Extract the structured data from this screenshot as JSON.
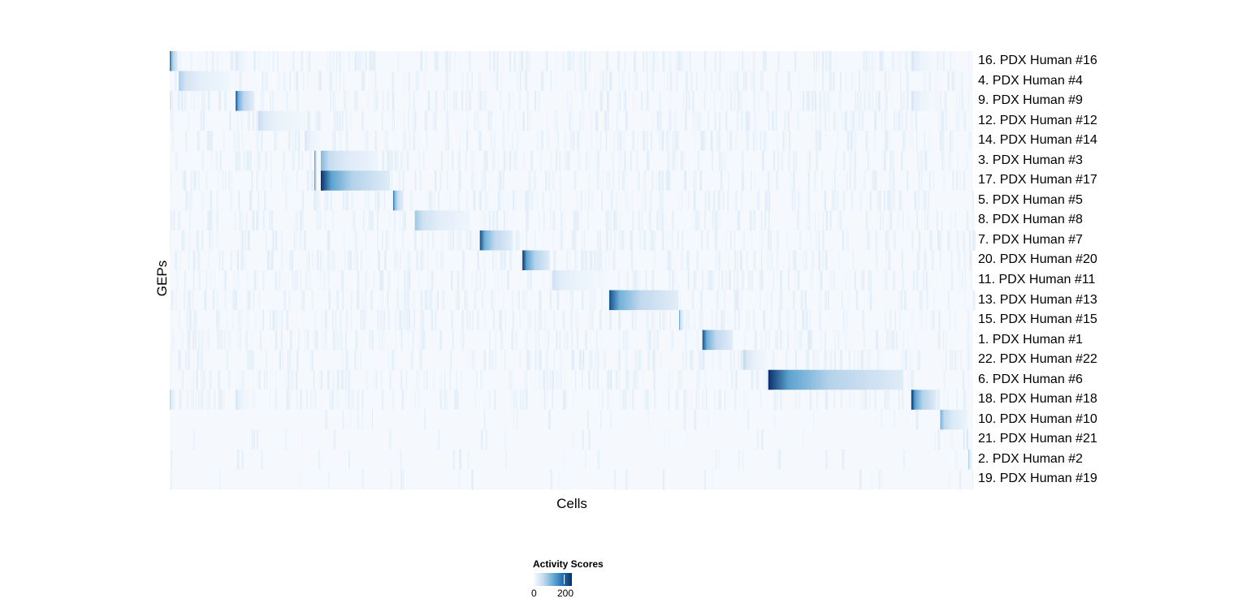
{
  "chart_data": {
    "type": "heatmap",
    "xlabel": "Cells",
    "ylabel": "GEPs",
    "x_units": "cell order (% of cells, approximate)",
    "rows": [
      {
        "label": "16. PDX Human #16",
        "blocks": [
          {
            "range": [
              0,
              1
            ],
            "peak": 230
          },
          {
            "range": [
              8.2,
              9.7
            ],
            "peak": 45
          },
          {
            "range": [
              92.3,
              95.1
            ],
            "peak": 45
          }
        ]
      },
      {
        "label": "4. PDX Human #4",
        "blocks": [
          {
            "range": [
              1.1,
              7.5
            ],
            "peak": 80
          }
        ]
      },
      {
        "label": "9. PDX Human #9",
        "blocks": [
          {
            "range": [
              8.2,
              10.5
            ],
            "peak": 220
          },
          {
            "range": [
              0,
              0.7
            ],
            "peak": 50
          },
          {
            "range": [
              92.3,
              95.1
            ],
            "peak": 45
          }
        ]
      },
      {
        "label": "12. PDX Human #12",
        "blocks": [
          {
            "range": [
              11,
              16.6
            ],
            "peak": 60
          }
        ]
      },
      {
        "label": "14. PDX Human #14",
        "blocks": [
          {
            "range": [
              16.8,
              18.8
            ],
            "peak": 45
          }
        ]
      },
      {
        "label": "3. PDX Human #3",
        "blocks": [
          {
            "range": [
              18,
              18.3
            ],
            "peak": 230
          },
          {
            "range": [
              18.8,
              25.9
            ],
            "peak": 110
          }
        ]
      },
      {
        "label": "17. PDX Human #17",
        "blocks": [
          {
            "range": [
              18,
              18.3
            ],
            "peak": 230
          },
          {
            "range": [
              18.8,
              27.4
            ],
            "peak": 250
          }
        ]
      },
      {
        "label": "5. PDX Human #5",
        "blocks": [
          {
            "range": [
              27.8,
              29.1
            ],
            "peak": 200
          }
        ]
      },
      {
        "label": "8. PDX Human #8",
        "blocks": [
          {
            "range": [
              30.5,
              37.3
            ],
            "peak": 90
          }
        ]
      },
      {
        "label": "7. PDX Human #7",
        "blocks": [
          {
            "range": [
              38.6,
              42.7
            ],
            "peak": 220
          }
        ]
      },
      {
        "label": "20. PDX Human #20",
        "blocks": [
          {
            "range": [
              43.9,
              47.3
            ],
            "peak": 250
          }
        ]
      },
      {
        "label": "11. PDX Human #11",
        "blocks": [
          {
            "range": [
              47.6,
              54.5
            ],
            "peak": 50
          }
        ]
      },
      {
        "label": "13. PDX Human #13",
        "blocks": [
          {
            "range": [
              54.7,
              63.3
            ],
            "peak": 220
          }
        ]
      },
      {
        "label": "15. PDX Human #15",
        "blocks": [
          {
            "range": [
              63.4,
              63.8
            ],
            "peak": 180
          }
        ]
      },
      {
        "label": "1. PDX Human #1",
        "blocks": [
          {
            "range": [
              66.3,
              70.1
            ],
            "peak": 220
          }
        ]
      },
      {
        "label": "22. PDX Human #22",
        "blocks": [
          {
            "range": [
              71.4,
              74.2
            ],
            "peak": 70
          }
        ]
      },
      {
        "label": "6. PDX Human #6",
        "blocks": [
          {
            "range": [
              74.5,
              91.3
            ],
            "peak": 250
          }
        ]
      },
      {
        "label": "18. PDX Human #18",
        "blocks": [
          {
            "range": [
              92.3,
              95.4
            ],
            "peak": 250
          },
          {
            "range": [
              0,
              0.7
            ],
            "peak": 80
          },
          {
            "range": [
              8.2,
              9.7
            ],
            "peak": 50
          }
        ]
      },
      {
        "label": "10. PDX Human #10",
        "blocks": [
          {
            "range": [
              95.9,
              99.3
            ],
            "peak": 120
          }
        ]
      },
      {
        "label": "21. PDX Human #21",
        "blocks": [
          {
            "range": [
              99.2,
              99.5
            ],
            "peak": 80
          }
        ]
      },
      {
        "label": "2. PDX Human #2",
        "blocks": [
          {
            "range": [
              99.4,
              99.8
            ],
            "peak": 110
          }
        ]
      },
      {
        "label": "19. PDX Human #19",
        "blocks": [
          {
            "range": [
              99.9,
              100
            ],
            "peak": 40
          }
        ]
      }
    ],
    "colorscale": {
      "name": "Blues",
      "colors": [
        "#f7fbff",
        "#c6dbef",
        "#6baed6",
        "#2171b5",
        "#08306b"
      ],
      "range": [
        0,
        250
      ]
    },
    "legend": {
      "title": "Activity Scores",
      "ticks": [
        "0",
        "200"
      ],
      "placement": "bottom"
    }
  }
}
